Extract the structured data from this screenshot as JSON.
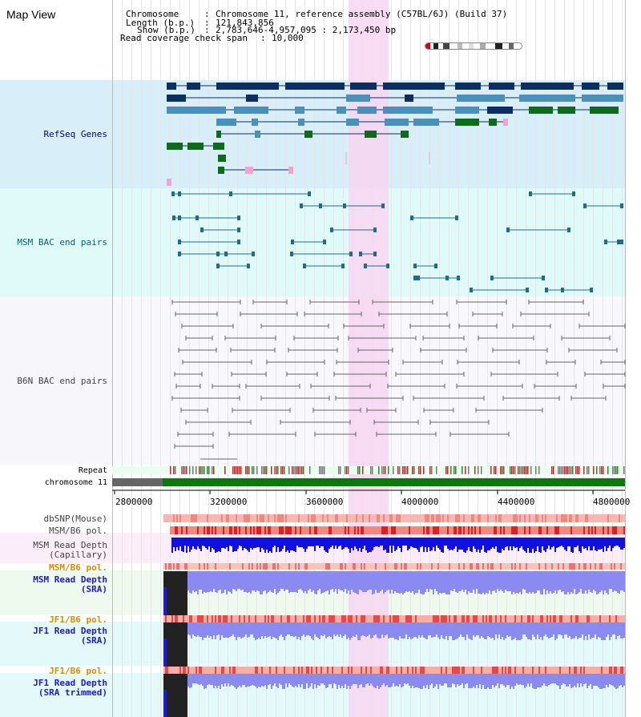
{
  "view": {
    "title": "Map View"
  },
  "header": {
    "chromosome_label": "Chromosome",
    "chromosome_value": "Chromosome 11, reference assembly (C57BL/6J) (Build 37)",
    "length_label": "Length (b.p.)",
    "length_value": "121,843,856",
    "show_label": "Show (b.p.)",
    "show_value": "2,783,646-4,957,095 : 2,173,450 bp",
    "span_label": "Read coverage check span",
    "span_value": "10,000"
  },
  "tracks": {
    "refseq": "RefSeq Genes",
    "msm_bac": "MSM BAC end pairs",
    "b6n_bac": "B6N BAC end pairs",
    "repeat": "Repeat",
    "chromosome": "chromosome 11",
    "dbsnp": "dbSNP(Mouse)",
    "msm_b6_pol_1": "MSM/B6 pol.",
    "msm_read_depth_cap_1": "MSM Read Depth",
    "msm_read_depth_cap_2": "(Capillary)",
    "msm_b6_pol_2": "MSM/B6 pol.",
    "msm_read_depth_sra_1": "MSM Read Depth",
    "msm_read_depth_sra_2": "(SRA)",
    "jf1_b6_pol_1": "JF1/B6 pol.",
    "jf1_read_depth_sra_1": "JF1 Read Depth",
    "jf1_read_depth_sra_2": "(SRA)",
    "jf1_b6_pol_2": "JF1/B6 pol.",
    "jf1_read_depth_trim_1": "JF1 Read Depth",
    "jf1_read_depth_trim_2": "(SRA trimmed)"
  },
  "axis": {
    "ticks": [
      "2800000",
      "3200000",
      "3600000",
      "4000000",
      "4400000",
      "4800000"
    ]
  },
  "colors": {
    "refseq_bg": "#d8effa",
    "msm_bg": "#e0fafa",
    "highlight": "#f7d6f1",
    "navy": "#0b2e63",
    "steel": "#4a90b8",
    "green": "#0f6b1c",
    "pink": "#f2a3d2",
    "teal_feature": "#1e6d8a",
    "grey_feature": "#666666"
  }
}
